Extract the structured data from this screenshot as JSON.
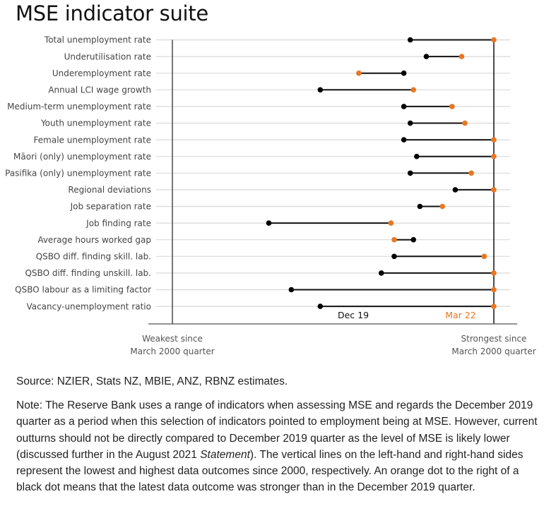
{
  "title": "MSE indicator suite",
  "colors": {
    "dec19_dot": "#000000",
    "mar22_dot": "#e87722",
    "gridline": "#d9d9d9",
    "bound_line": "#555555"
  },
  "chart_data": {
    "type": "dumbbell",
    "title": "MSE indicator suite",
    "xlabel": "",
    "ylabel": "",
    "x_scale_note": "0 = weakest since March 2000 quarter, 1 = strongest since March 2000 quarter",
    "xlim": [
      0,
      1
    ],
    "grid": true,
    "left_bound_label": [
      "Weakest since",
      "March 2000 quarter"
    ],
    "right_bound_label": [
      "Strongest since",
      "March 2000 quarter"
    ],
    "legend": [
      {
        "name": "Dec 19",
        "color": "#000000"
      },
      {
        "name": "Mar 22",
        "color": "#e87722"
      }
    ],
    "legend_placement": "bottom",
    "categories": [
      "Total unemployment rate",
      "Underutilisation rate",
      "Underemployment rate",
      "Annual LCI wage growth",
      "Medium-term unemployment rate",
      "Youth unemployment rate",
      "Female unemployment rate",
      "Māori (only) unemployment rate",
      "Pasifika (only) unemployment rate",
      "Regional deviations",
      "Job separation rate",
      "Job finding rate",
      "Average hours worked gap",
      "QSBO diff. finding skill. lab.",
      "QSBO diff. finding unskill. lab.",
      "QSBO labour as a limiting factor",
      "Vacancy-unemployment ratio"
    ],
    "series": [
      {
        "name": "Dec 19",
        "values": [
          0.74,
          0.79,
          0.72,
          0.46,
          0.72,
          0.74,
          0.72,
          0.76,
          0.74,
          0.88,
          0.77,
          0.3,
          0.75,
          0.69,
          0.65,
          0.37,
          0.46
        ]
      },
      {
        "name": "Mar 22",
        "values": [
          1.0,
          0.9,
          0.58,
          0.75,
          0.87,
          0.91,
          1.0,
          1.0,
          0.93,
          1.0,
          0.84,
          0.68,
          0.69,
          0.97,
          1.0,
          1.0,
          1.0
        ]
      }
    ]
  },
  "source": "Source: NZIER, Stats NZ, MBIE, ANZ, RBNZ estimates.",
  "note": {
    "part1": "Note: The Reserve Bank uses a range of indicators when assessing MSE and regards the December 2019 quarter as a period when this selection of indicators pointed to employment being at MSE. However, current outturns should not be directly compared to December 2019 quarter as the level of MSE is likely lower (discussed further in the August 2021 ",
    "italic": "Statement",
    "part2": "). The vertical lines on the left-hand and right-hand sides represent the lowest and highest data outcomes since 2000, respectively. An orange dot to the right of a black dot means that the latest data outcome was stronger than in the December 2019 quarter."
  }
}
